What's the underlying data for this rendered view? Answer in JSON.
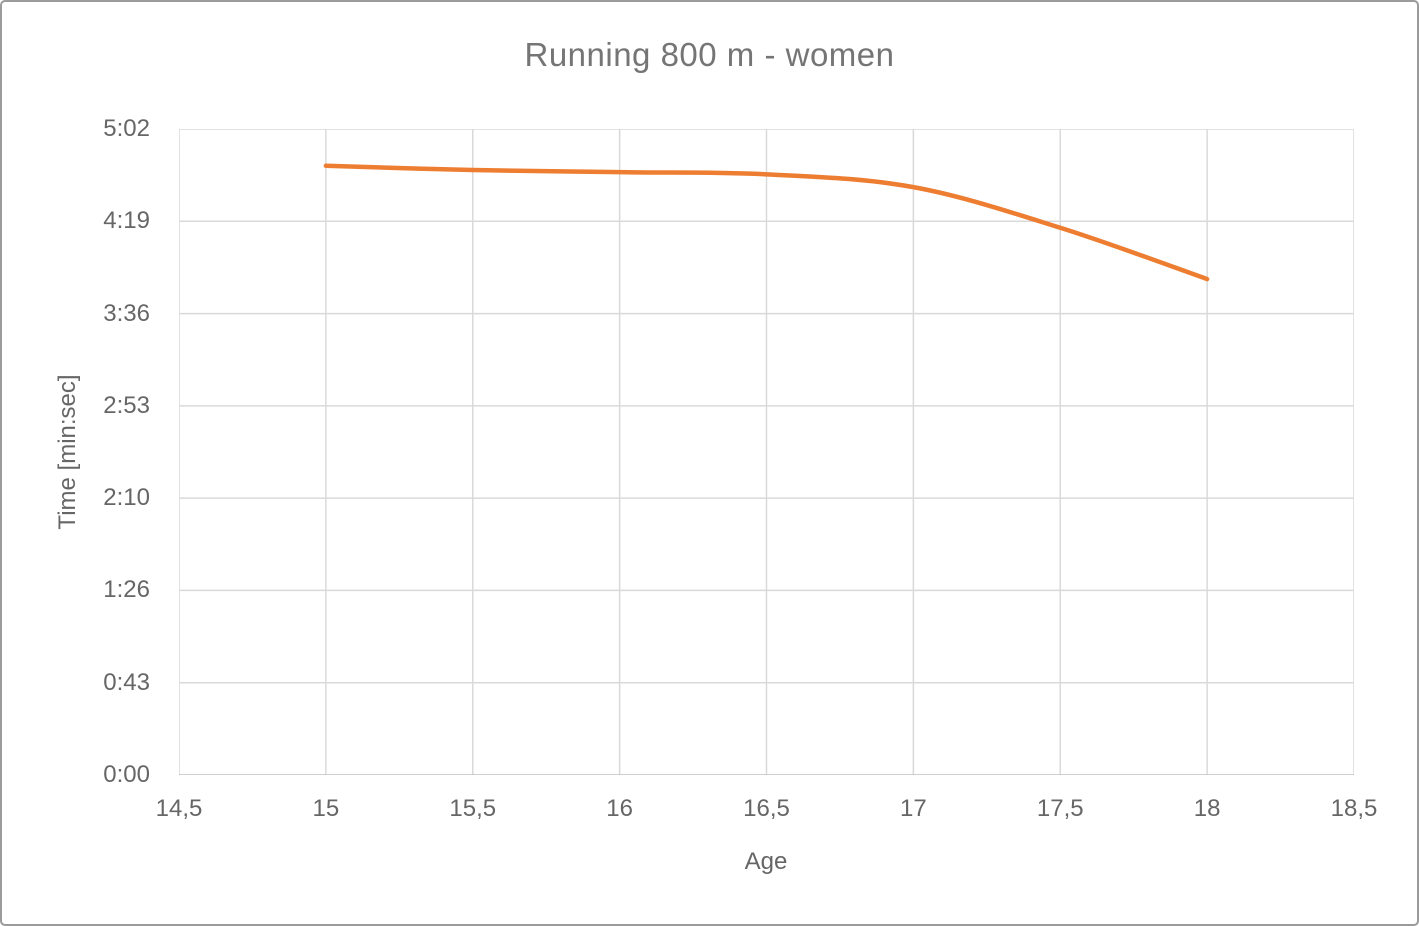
{
  "chart_data": {
    "type": "line",
    "title": "Running 800 m - women",
    "xlabel": "Age",
    "ylabel": "Time [min:sec]",
    "x_ticks": [
      "14,5",
      "15",
      "15,5",
      "16",
      "16,5",
      "17",
      "17,5",
      "18",
      "18,5"
    ],
    "y_ticks": [
      "0:00",
      "0:43",
      "1:26",
      "2:10",
      "2:53",
      "3:36",
      "4:19",
      "5:02"
    ],
    "xlim": [
      14.5,
      18.5
    ],
    "ylim_seconds": [
      0,
      302.2
    ],
    "grid": true,
    "legend": "none",
    "smooth": true,
    "series": [
      {
        "name": "Running 800 m - women",
        "color": "#ED7D31",
        "x": [
          15,
          15.5,
          16,
          16.5,
          17,
          17.5,
          18
        ],
        "y_seconds": [
          285,
          283,
          282,
          281,
          275,
          256,
          232
        ],
        "y_times": [
          "4:45",
          "4:43",
          "4:42",
          "4:41",
          "4:35",
          "4:16",
          "3:52"
        ]
      }
    ],
    "colors": {
      "line": "#ED7D31",
      "gridline": "#D9D9D9",
      "axis_line": "#BFBFBF",
      "text": "#666666"
    }
  }
}
